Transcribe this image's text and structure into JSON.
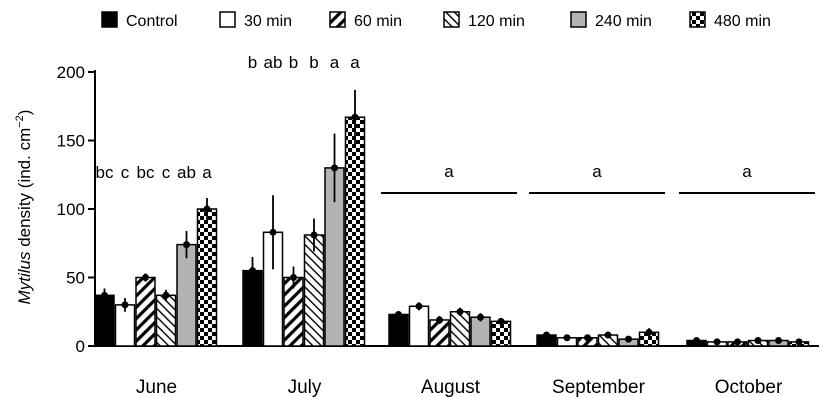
{
  "chart_data": {
    "type": "bar",
    "ylabel_italic": "Mytilus",
    "ylabel_rest": " density (ind. cm",
    "ylabel_sup": "−2",
    "ylabel_close": ")",
    "ylim": [
      0,
      200
    ],
    "yticks": [
      0,
      50,
      100,
      150,
      200
    ],
    "categories": [
      "June",
      "July",
      "August",
      "September",
      "October"
    ],
    "legend_position": "top",
    "series": [
      {
        "name": "Control",
        "pattern": "solid-black",
        "values": [
          37,
          55,
          23,
          8,
          4
        ],
        "errors": [
          5,
          10,
          2,
          2,
          2
        ]
      },
      {
        "name": "30 min",
        "pattern": "white",
        "values": [
          30,
          83,
          29,
          6,
          3
        ],
        "errors": [
          5,
          27,
          3,
          2,
          1
        ]
      },
      {
        "name": "60 min",
        "pattern": "diagonal-forward",
        "values": [
          50,
          50,
          19,
          6,
          3
        ],
        "errors": [
          3,
          8,
          3,
          2,
          1
        ]
      },
      {
        "name": "120 min",
        "pattern": "diagonal-backward",
        "values": [
          37,
          81,
          25,
          8,
          4
        ],
        "errors": [
          4,
          12,
          3,
          2,
          1
        ]
      },
      {
        "name": "240 min",
        "pattern": "gray",
        "values": [
          74,
          130,
          21,
          5,
          4
        ],
        "errors": [
          10,
          25,
          3,
          1,
          2
        ]
      },
      {
        "name": "480 min",
        "pattern": "checker",
        "values": [
          100,
          167,
          18,
          10,
          3
        ],
        "errors": [
          8,
          20,
          2,
          3,
          1
        ]
      }
    ],
    "significance_letters": {
      "June": [
        "bc",
        "c",
        "bc",
        "c",
        "ab",
        "a"
      ],
      "July": [
        "b",
        "ab",
        "b",
        "b",
        "a",
        "a"
      ]
    },
    "group_annotations": {
      "August": "a",
      "September": "a",
      "October": "a"
    }
  }
}
